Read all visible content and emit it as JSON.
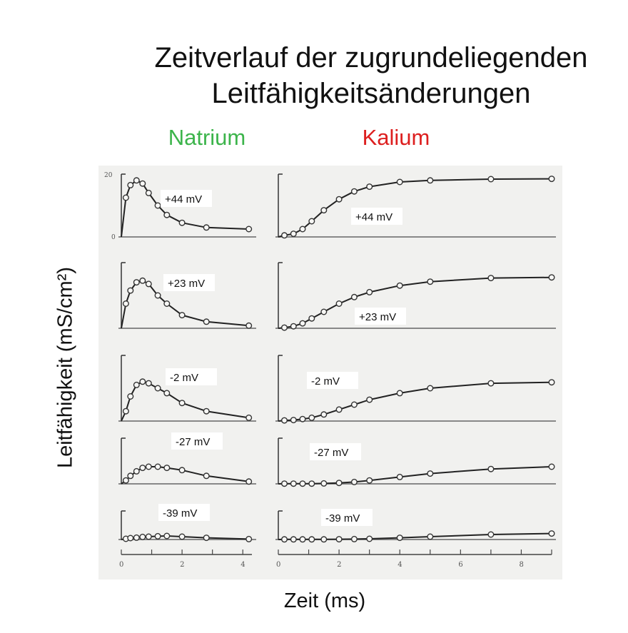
{
  "title_line1": "Zeitverlauf der zugrundeliegenden",
  "title_line2": "Leitfähigkeitsänderungen",
  "sodium_header": "Natrium",
  "potassium_header": "Kalium",
  "sodium_color": "#3cb44b",
  "potassium_color": "#dd1f1f",
  "ylabel": "Leitfähigkeit (mS/cm²)",
  "xlabel": "Zeit (ms)",
  "chart_data": {
    "type": "line",
    "xlabel": "Zeit (ms)",
    "ylabel": "Leitfähigkeit (mS/cm²)",
    "ylim": [
      0,
      20
    ],
    "y_ticks": [
      "0",
      "20"
    ],
    "panels": [
      {
        "ion": "Natrium",
        "xlim": [
          0,
          4.3
        ],
        "x_ticks": [
          "0",
          "2",
          "4"
        ],
        "series": [
          {
            "name": "+44 mV",
            "x": [
              0.15,
              0.3,
              0.5,
              0.7,
              0.9,
              1.2,
              1.5,
              2.0,
              2.8,
              4.2
            ],
            "y": [
              12.5,
              16.5,
              18.0,
              17.0,
              14.0,
              10.0,
              7.0,
              4.5,
              3.0,
              2.5
            ]
          },
          {
            "name": "+23 mV",
            "x": [
              0.15,
              0.3,
              0.5,
              0.7,
              0.9,
              1.2,
              1.5,
              2.0,
              2.8,
              4.2
            ],
            "y": [
              7.5,
              11.5,
              14.0,
              14.5,
              13.5,
              10.0,
              7.5,
              4.0,
              2.0,
              0.8
            ]
          },
          {
            "name": "-2 mV",
            "x": [
              0.15,
              0.3,
              0.5,
              0.7,
              0.9,
              1.2,
              1.5,
              2.0,
              2.8,
              4.2
            ],
            "y": [
              3.0,
              7.5,
              11.0,
              12.0,
              11.5,
              10.0,
              8.5,
              5.5,
              3.0,
              1.0
            ]
          },
          {
            "name": "-27 mV",
            "x": [
              0.15,
              0.3,
              0.5,
              0.7,
              0.9,
              1.2,
              1.5,
              2.0,
              2.8,
              4.2
            ],
            "y": [
              1.5,
              3.5,
              5.5,
              7.0,
              7.5,
              7.5,
              7.0,
              6.0,
              3.5,
              1.0
            ]
          },
          {
            "name": "-39 mV",
            "x": [
              0.15,
              0.3,
              0.5,
              0.7,
              0.9,
              1.2,
              1.5,
              2.0,
              2.8,
              4.2
            ],
            "y": [
              0.5,
              1.0,
              1.3,
              1.8,
              2.0,
              2.3,
              2.5,
              2.0,
              1.2,
              0.3
            ]
          }
        ]
      },
      {
        "ion": "Kalium",
        "xlim": [
          0,
          9
        ],
        "x_ticks": [
          "0",
          "2",
          "4",
          "6",
          "8"
        ],
        "series": [
          {
            "name": "+44 mV",
            "x": [
              0.2,
              0.5,
              0.8,
              1.1,
              1.5,
              2.0,
              2.5,
              3.0,
              4.0,
              5.0,
              7.0,
              9.0
            ],
            "y": [
              0.5,
              1.0,
              2.5,
              5.0,
              8.5,
              12.0,
              14.5,
              16.0,
              17.5,
              18.0,
              18.4,
              18.5
            ]
          },
          {
            "name": "+23 mV",
            "x": [
              0.2,
              0.5,
              0.8,
              1.1,
              1.5,
              2.0,
              2.5,
              3.0,
              4.0,
              5.0,
              7.0,
              9.0
            ],
            "y": [
              0.2,
              0.6,
              1.5,
              3.0,
              5.0,
              7.5,
              9.5,
              11.0,
              13.0,
              14.2,
              15.3,
              15.5
            ]
          },
          {
            "name": "-2 mV",
            "x": [
              0.2,
              0.5,
              0.8,
              1.1,
              1.5,
              2.0,
              2.5,
              3.0,
              4.0,
              5.0,
              7.0,
              9.0
            ],
            "y": [
              0.2,
              0.3,
              0.6,
              1.0,
              2.0,
              3.5,
              5.0,
              6.5,
              8.5,
              10.0,
              11.5,
              11.8
            ]
          },
          {
            "name": "-27 mV",
            "x": [
              0.2,
              0.5,
              0.8,
              1.1,
              1.5,
              2.0,
              2.5,
              3.0,
              4.0,
              5.0,
              7.0,
              9.0
            ],
            "y": [
              0.1,
              0.1,
              0.1,
              0.1,
              0.2,
              0.4,
              0.8,
              1.5,
              3.0,
              4.5,
              6.5,
              7.5
            ]
          },
          {
            "name": "-39 mV",
            "x": [
              0.2,
              0.5,
              0.8,
              1.1,
              1.5,
              2.0,
              2.5,
              3.0,
              4.0,
              5.0,
              7.0,
              9.0
            ],
            "y": [
              0.1,
              0.1,
              0.1,
              0.1,
              0.1,
              0.2,
              0.3,
              0.5,
              1.2,
              2.0,
              3.5,
              4.2
            ]
          }
        ]
      }
    ]
  }
}
